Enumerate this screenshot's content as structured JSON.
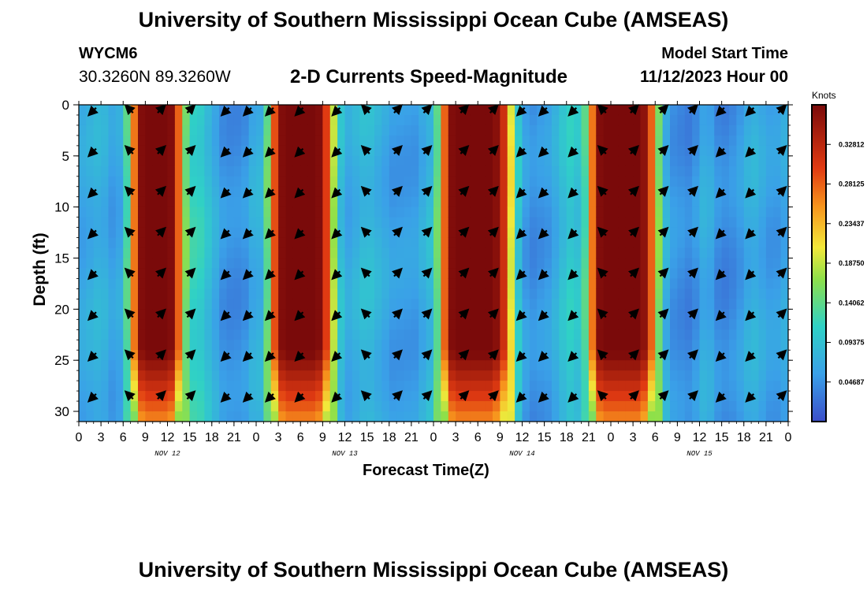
{
  "header": {
    "title": "University of Southern Mississippi Ocean Cube (AMSEAS)",
    "station_id": "WYCM6",
    "station_coords": "30.3260N  89.3260W",
    "subtitle": "2-D Currents Speed-Magnitude",
    "model_start_label": "Model Start Time",
    "model_start_value": "11/12/2023 Hour 00"
  },
  "footer": {
    "title": "University of Southern Mississippi Ocean Cube (AMSEAS)"
  },
  "chart_data": {
    "type": "heatmap",
    "title": "2-D Currents Speed-Magnitude",
    "xlabel": "Forecast Time(Z)",
    "ylabel": "Depth (ft)",
    "x_range_hours": [
      0,
      96
    ],
    "ylim": [
      0,
      31
    ],
    "x_ticks": [
      "0",
      "3",
      "6",
      "9",
      "12",
      "15",
      "18",
      "21",
      "0",
      "3",
      "6",
      "9",
      "12",
      "15",
      "18",
      "21",
      "0",
      "3",
      "6",
      "9",
      "12",
      "15",
      "18",
      "21",
      "0",
      "3",
      "6",
      "9",
      "12",
      "15",
      "18",
      "21",
      "0"
    ],
    "y_ticks": [
      "0",
      "5",
      "10",
      "15",
      "20",
      "25",
      "30"
    ],
    "y_tick_values": [
      0,
      5,
      10,
      15,
      20,
      25,
      30
    ],
    "day_labels": [
      {
        "text": "NOV 12",
        "hour": 12
      },
      {
        "text": "NOV 13",
        "hour": 36
      },
      {
        "text": "NOV 14",
        "hour": 60
      },
      {
        "text": "NOV 15",
        "hour": 84
      }
    ],
    "colorbar": {
      "label": "Knots",
      "ticks": [
        "0.32812",
        "0.28125",
        "0.23437",
        "0.18750",
        "0.14062",
        "0.09375",
        "0.04687"
      ],
      "tick_values": [
        0.32812,
        0.28125,
        0.23437,
        0.1875,
        0.14062,
        0.09375,
        0.04687
      ],
      "range": [
        0.0,
        0.375
      ]
    },
    "speed_profile": {
      "hours": [
        0,
        3,
        5,
        6,
        7,
        8,
        9,
        10,
        11,
        12,
        13,
        14,
        15,
        16,
        17,
        18,
        19,
        20,
        21,
        22,
        23,
        24,
        25,
        26,
        27,
        28,
        29,
        30,
        31,
        32,
        33,
        34,
        35,
        36,
        37,
        38,
        39,
        40,
        41,
        42,
        43,
        44,
        45,
        46,
        47,
        48,
        49,
        50,
        51,
        52,
        53,
        54,
        55,
        56,
        57,
        58,
        59,
        60,
        61,
        62,
        63,
        64,
        65,
        66,
        67,
        68,
        69,
        70,
        71,
        72,
        73,
        74,
        75,
        76,
        77,
        78,
        79,
        80,
        81,
        82,
        83,
        84,
        85,
        86,
        87,
        88,
        89,
        90,
        91,
        92,
        93,
        94,
        95,
        96
      ],
      "speed_knots": [
        0.06,
        0.08,
        0.05,
        0.08,
        0.18,
        0.36,
        0.38,
        0.38,
        0.38,
        0.38,
        0.36,
        0.2,
        0.11,
        0.12,
        0.1,
        0.08,
        0.06,
        0.04,
        0.05,
        0.04,
        0.06,
        0.08,
        0.07,
        0.22,
        0.36,
        0.38,
        0.38,
        0.38,
        0.38,
        0.38,
        0.36,
        0.24,
        0.12,
        0.06,
        0.07,
        0.08,
        0.09,
        0.08,
        0.07,
        0.06,
        0.05,
        0.06,
        0.05,
        0.06,
        0.08,
        0.09,
        0.2,
        0.36,
        0.38,
        0.38,
        0.38,
        0.38,
        0.38,
        0.38,
        0.35,
        0.28,
        0.13,
        0.07,
        0.04,
        0.05,
        0.05,
        0.06,
        0.08,
        0.1,
        0.11,
        0.08,
        0.18,
        0.36,
        0.38,
        0.38,
        0.38,
        0.38,
        0.38,
        0.38,
        0.34,
        0.22,
        0.1,
        0.05,
        0.05,
        0.04,
        0.04,
        0.06,
        0.08,
        0.05,
        0.04,
        0.04,
        0.05,
        0.06,
        0.08,
        0.07,
        0.06,
        0.05,
        0.06,
        0.07,
        0.07
      ]
    },
    "current_vectors": {
      "hours": [
        2,
        7,
        11,
        15,
        20,
        23,
        26,
        30,
        35,
        39,
        43,
        47,
        52,
        56,
        60,
        63,
        67,
        71,
        75,
        79,
        83,
        87,
        91,
        95
      ],
      "depths_ft": [
        0.5,
        4.5,
        8.5,
        12.5,
        16.5,
        20.5,
        24.5,
        28.5
      ],
      "note": "arrow directions in degrees (0 = up/north, clockwise)",
      "direction_deg": [
        [
          225,
          315,
          45,
          45,
          225,
          225,
          225,
          225,
          225,
          315,
          45,
          45,
          45,
          45,
          225,
          225,
          225,
          315,
          45,
          45,
          45,
          225,
          225,
          45
        ],
        [
          225,
          315,
          45,
          45,
          225,
          225,
          225,
          225,
          225,
          315,
          45,
          45,
          45,
          45,
          225,
          225,
          225,
          315,
          45,
          45,
          45,
          225,
          225,
          45
        ],
        [
          225,
          315,
          45,
          45,
          225,
          225,
          225,
          225,
          225,
          315,
          45,
          45,
          45,
          45,
          225,
          225,
          225,
          315,
          45,
          45,
          45,
          225,
          225,
          45
        ],
        [
          225,
          315,
          45,
          45,
          225,
          225,
          225,
          225,
          225,
          315,
          45,
          45,
          45,
          45,
          225,
          225,
          225,
          315,
          45,
          45,
          45,
          225,
          225,
          45
        ],
        [
          225,
          315,
          45,
          45,
          225,
          225,
          225,
          225,
          225,
          315,
          45,
          45,
          45,
          45,
          225,
          225,
          225,
          315,
          45,
          45,
          45,
          225,
          225,
          45
        ],
        [
          225,
          315,
          45,
          45,
          225,
          225,
          225,
          225,
          225,
          315,
          45,
          45,
          45,
          45,
          225,
          225,
          225,
          315,
          45,
          45,
          45,
          225,
          225,
          45
        ],
        [
          225,
          315,
          45,
          45,
          225,
          225,
          225,
          225,
          225,
          315,
          45,
          45,
          45,
          45,
          225,
          225,
          225,
          315,
          45,
          45,
          45,
          225,
          225,
          45
        ],
        [
          225,
          315,
          45,
          45,
          225,
          225,
          225,
          225,
          225,
          315,
          45,
          45,
          45,
          45,
          225,
          225,
          225,
          315,
          45,
          45,
          45,
          225,
          225,
          45
        ]
      ]
    }
  }
}
